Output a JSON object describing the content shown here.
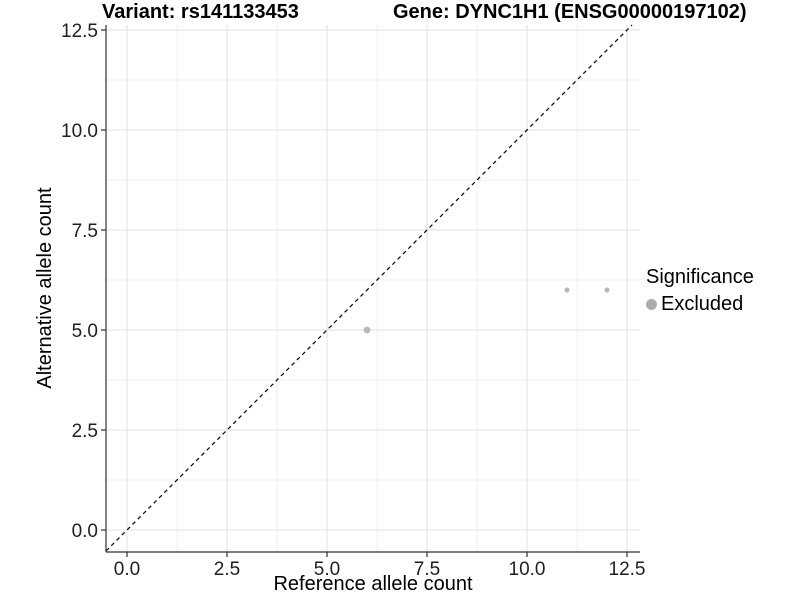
{
  "chart_data": {
    "type": "scatter",
    "title_left": "Variant: rs141133453",
    "title_right": "Gene: DYNC1H1 (ENSG00000197102)",
    "xlabel": "Reference allele count",
    "ylabel": "Alternative allele count",
    "tick_values": [
      0,
      2.5,
      5,
      7.5,
      10,
      12.5
    ],
    "tick_labels": [
      "0.0",
      "2.5",
      "5.0",
      "7.5",
      "10.0",
      "12.5"
    ],
    "minor_ticks": [
      1.25,
      3.75,
      6.25,
      8.75,
      11.25
    ],
    "xlim": [
      -0.525,
      12.825
    ],
    "ylim": [
      -0.55,
      12.625
    ],
    "grid": "major+minor",
    "identity_line": {
      "style": "dashed",
      "color": "#000000"
    },
    "points": [
      {
        "x": 6,
        "y": 5,
        "r": 3.4
      },
      {
        "x": 11,
        "y": 6,
        "r": 2.5
      },
      {
        "x": 12,
        "y": 6,
        "r": 2.5
      }
    ],
    "point_color": "#b7b7b7",
    "legend": {
      "title": "Significance",
      "position": "right",
      "items": [
        {
          "label": "Excluded",
          "color": "#acacac"
        }
      ]
    },
    "colors": {
      "grid_major": "#e2e2e2",
      "grid_minor": "#efefef",
      "axis": "#303030",
      "tick_text": "#1f1f1f",
      "title_text": "#000000"
    }
  }
}
